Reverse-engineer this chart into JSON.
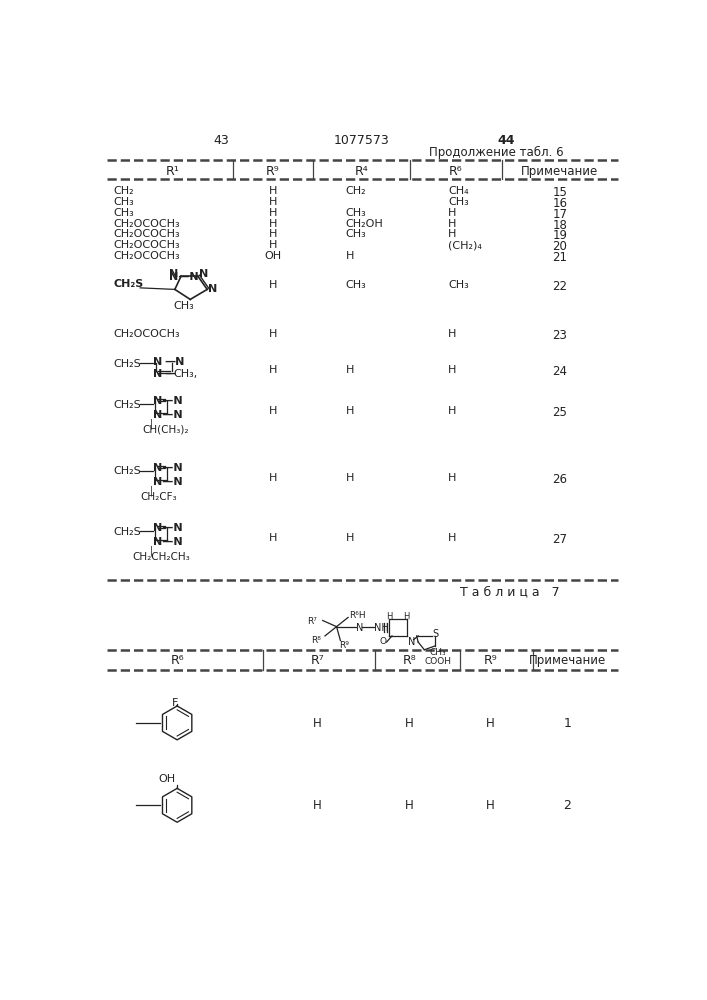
{
  "background": "#ffffff",
  "text_color": "#222222",
  "page_left": "43",
  "page_center": "1077573",
  "page_right": "44",
  "subtitle": "Продолжение табл. 6"
}
